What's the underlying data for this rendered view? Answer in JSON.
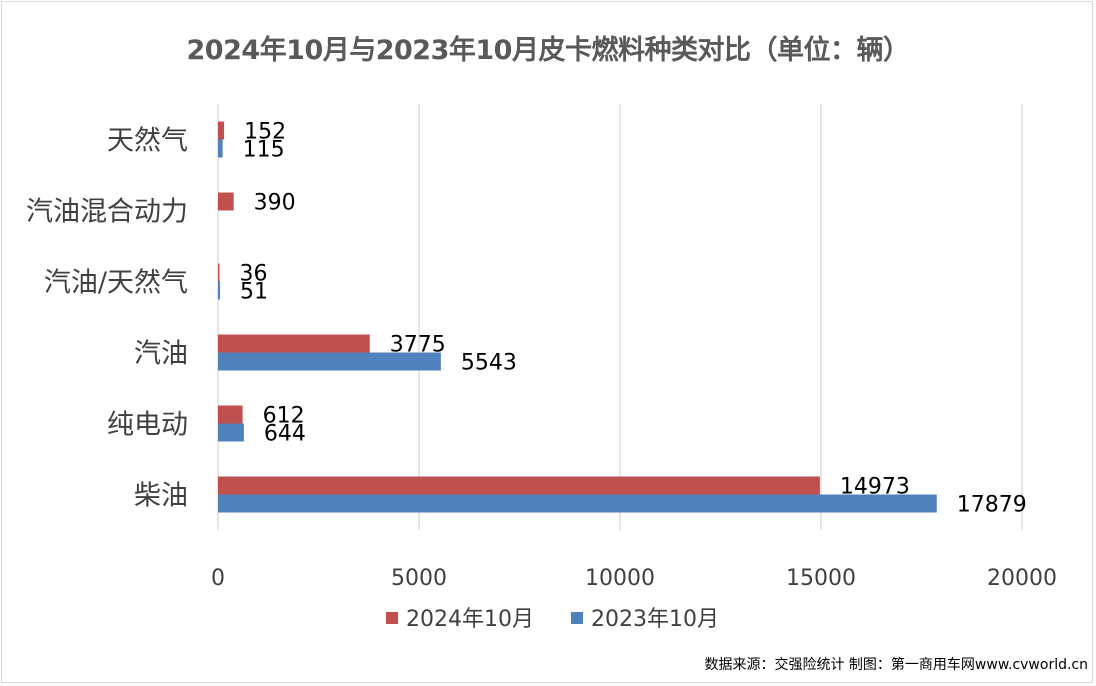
{
  "title": "2024年10月与2023年10月皮卡燃料种类对比（单位：辆）",
  "source": "数据来源：交强险统计 制图：第一商用车网www.cvworld.cn",
  "colors": {
    "series_2024": "#c0504d",
    "series_2023": "#4f81bd",
    "grid": "#d9d9d9",
    "text": "#404040"
  },
  "chart_data": {
    "type": "bar",
    "orientation": "horizontal",
    "title": "2024年10月与2023年10月皮卡燃料种类对比（单位：辆）",
    "categories": [
      "天然气",
      "汽油混合动力",
      "汽油/天然气",
      "汽油",
      "纯电动",
      "柴油"
    ],
    "series": [
      {
        "name": "2024年10月",
        "values": [
          152,
          390,
          36,
          3775,
          612,
          14973
        ]
      },
      {
        "name": "2023年10月",
        "values": [
          115,
          null,
          51,
          5543,
          644,
          17879
        ]
      }
    ],
    "xlim": [
      0,
      20000
    ],
    "xticks": [
      0,
      5000,
      10000,
      15000,
      20000
    ],
    "grid": "vertical",
    "legend": "bottom"
  }
}
